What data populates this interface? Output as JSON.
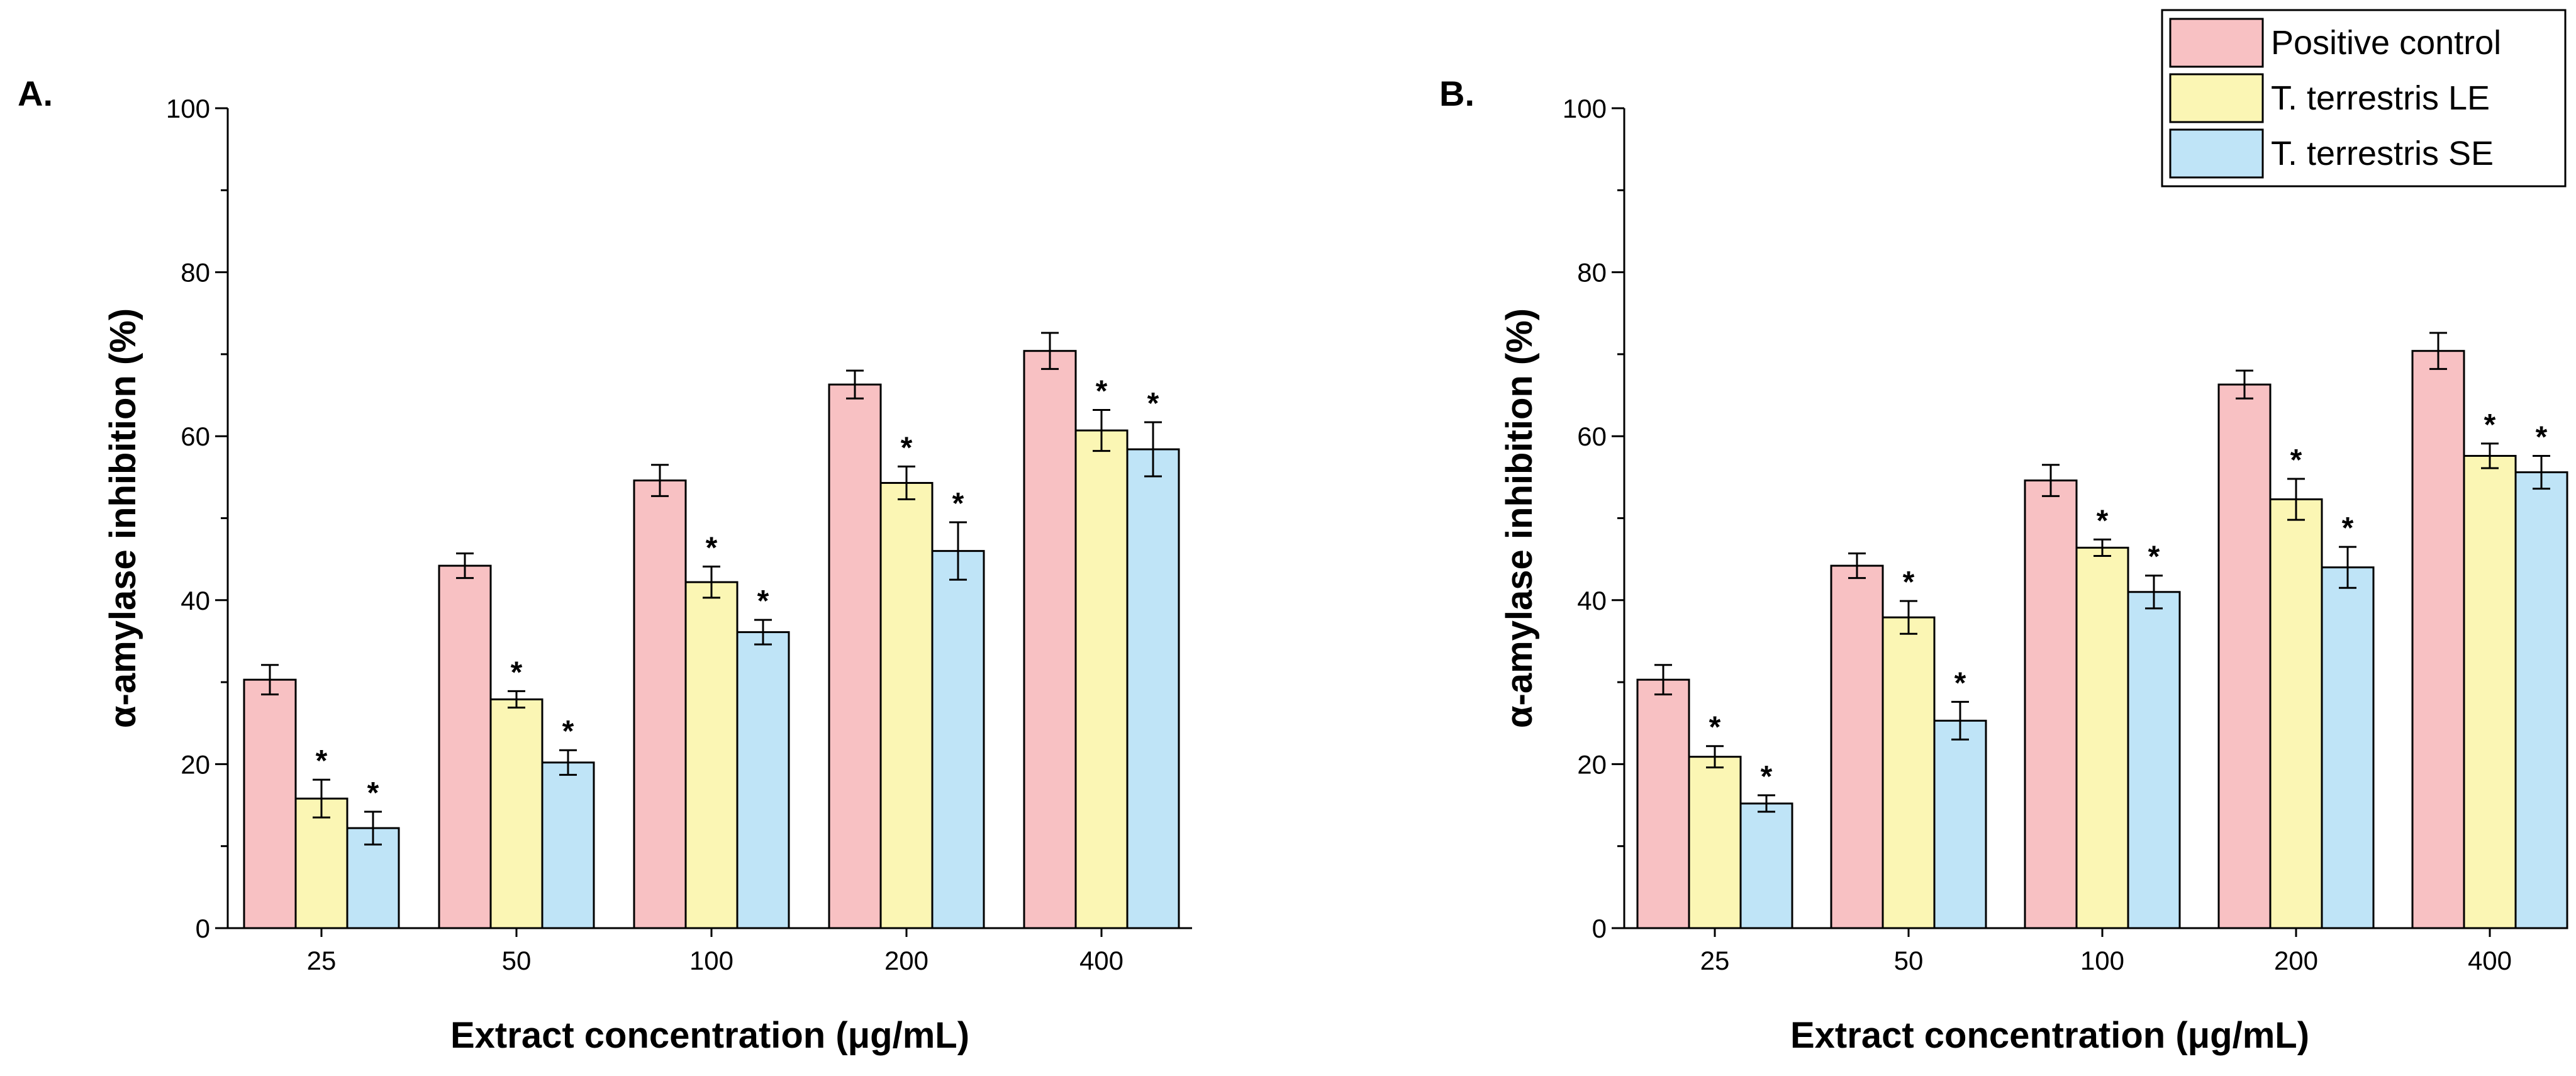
{
  "colors": {
    "positive": "#f8c1c3",
    "le": "#fbf6b4",
    "se": "#bfe4f7",
    "stroke": "#000000"
  },
  "legend": [
    {
      "key": "positive",
      "label": "Positive control"
    },
    {
      "key": "le",
      "label": "T. terrestris LE"
    },
    {
      "key": "se",
      "label": "T. terrestris SE"
    }
  ],
  "chart_data": [
    {
      "type": "bar",
      "panel": "A.",
      "xlabel": "Extract concentration (μg/mL)",
      "ylabel": "α-amylase inhibition (%)",
      "ylim": [
        0,
        100
      ],
      "yticks": [
        0,
        20,
        40,
        60,
        80,
        100
      ],
      "categories": [
        "25",
        "50",
        "100",
        "200",
        "400"
      ],
      "series": [
        {
          "name": "Positive control",
          "key": "positive",
          "values": [
            30.3,
            44.2,
            54.6,
            66.3,
            70.4
          ],
          "errors": [
            1.8,
            1.5,
            1.9,
            1.7,
            2.2
          ],
          "significant": [
            false,
            false,
            false,
            false,
            false
          ]
        },
        {
          "name": "T. terrestris LE",
          "key": "le",
          "values": [
            15.8,
            27.9,
            42.2,
            54.3,
            60.7
          ],
          "errors": [
            2.3,
            1.0,
            1.9,
            2.0,
            2.5
          ],
          "significant": [
            true,
            true,
            true,
            true,
            true
          ]
        },
        {
          "name": "T. terrestris SE",
          "key": "se",
          "values": [
            12.2,
            20.2,
            36.1,
            46.0,
            58.4
          ],
          "errors": [
            2.0,
            1.5,
            1.5,
            3.5,
            3.3
          ],
          "significant": [
            true,
            true,
            true,
            true,
            true
          ]
        }
      ]
    },
    {
      "type": "bar",
      "panel": "B.",
      "xlabel": "Extract concentration (μg/mL)",
      "ylabel": "α-amylase inhibition (%)",
      "ylim": [
        0,
        100
      ],
      "yticks": [
        0,
        20,
        40,
        60,
        80,
        100
      ],
      "categories": [
        "25",
        "50",
        "100",
        "200",
        "400"
      ],
      "series": [
        {
          "name": "Positive control",
          "key": "positive",
          "values": [
            30.3,
            44.2,
            54.6,
            66.3,
            70.4
          ],
          "errors": [
            1.8,
            1.5,
            1.9,
            1.7,
            2.2
          ],
          "significant": [
            false,
            false,
            false,
            false,
            false
          ]
        },
        {
          "name": "T. terrestris LE",
          "key": "le",
          "values": [
            20.9,
            37.9,
            46.4,
            52.3,
            57.6
          ],
          "errors": [
            1.3,
            2.0,
            1.0,
            2.5,
            1.5
          ],
          "significant": [
            true,
            true,
            true,
            true,
            true
          ]
        },
        {
          "name": "T. terrestris SE",
          "key": "se",
          "values": [
            15.2,
            25.3,
            41.0,
            44.0,
            55.6
          ],
          "errors": [
            1.0,
            2.3,
            2.0,
            2.5,
            2.0
          ],
          "significant": [
            true,
            true,
            true,
            true,
            true
          ]
        }
      ]
    }
  ]
}
